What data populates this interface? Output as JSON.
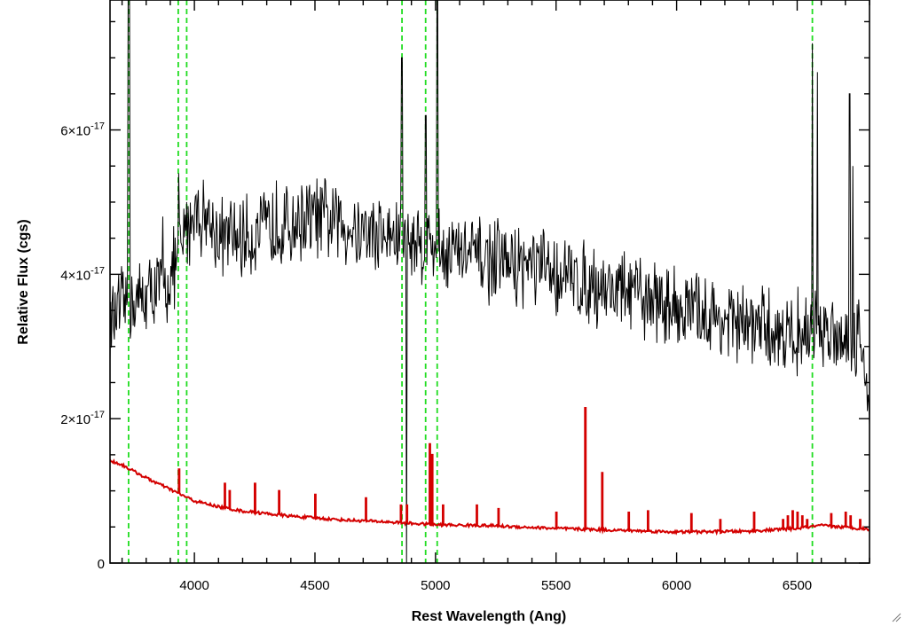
{
  "chart_data": {
    "type": "line",
    "title": "",
    "xlabel": "Rest Wavelength (Ang)",
    "ylabel": "Relative Flux (cgs)",
    "xlim": [
      3650,
      6800
    ],
    "ylim": [
      0,
      7.8e-17
    ],
    "x_ticks": [
      4000,
      4500,
      5000,
      5500,
      6000,
      6500
    ],
    "x_tick_labels": [
      "4000",
      "4500",
      "5000",
      "5500",
      "6000",
      "6500"
    ],
    "y_ticks": [
      0,
      2e-17,
      4e-17,
      6e-17
    ],
    "y_tick_labels": [
      {
        "mantissa": "0",
        "exponent": ""
      },
      {
        "mantissa": "2×10",
        "exponent": "-17"
      },
      {
        "mantissa": "4×10",
        "exponent": "-17"
      },
      {
        "mantissa": "6×10",
        "exponent": "-17"
      }
    ],
    "grid": false,
    "series": [
      {
        "color": "#000000",
        "style": "solid",
        "continuum": [
          [
            3650,
            3.3e-17
          ],
          [
            3700,
            3.5e-17
          ],
          [
            3800,
            3.7e-17
          ],
          [
            3900,
            3.9e-17
          ],
          [
            4000,
            4.9e-17
          ],
          [
            4050,
            4.8e-17
          ],
          [
            4100,
            4.5e-17
          ],
          [
            4200,
            4.5e-17
          ],
          [
            4300,
            4.6e-17
          ],
          [
            4400,
            4.7e-17
          ],
          [
            4500,
            4.8e-17
          ],
          [
            4700,
            4.6e-17
          ],
          [
            4850,
            4.5e-17
          ],
          [
            5000,
            4.4e-17
          ],
          [
            5200,
            4.2e-17
          ],
          [
            5400,
            4.1e-17
          ],
          [
            5600,
            3.9e-17
          ],
          [
            5800,
            3.75e-17
          ],
          [
            6000,
            3.55e-17
          ],
          [
            6200,
            3.35e-17
          ],
          [
            6400,
            3.2e-17
          ],
          [
            6600,
            3.2e-17
          ],
          [
            6750,
            3.2e-17
          ],
          [
            6800,
            2.4e-17
          ]
        ],
        "noise_amplitude": 5.5e-18,
        "features": [
          [
            3727,
            7.8e-17
          ],
          [
            3730,
            7.8e-17
          ],
          [
            3869,
            4.8e-17
          ],
          [
            3935,
            5.4e-17
          ],
          [
            3968,
            5e-17
          ],
          [
            4340,
            5.3e-17
          ],
          [
            4861,
            7e-17
          ],
          [
            4880,
            0.0
          ],
          [
            4959,
            6.2e-17
          ],
          [
            5007,
            7.8e-17
          ],
          [
            6563,
            7.2e-17
          ],
          [
            6584,
            6.8e-17
          ],
          [
            6717,
            6.5e-17
          ],
          [
            6731,
            5.5e-17
          ]
        ]
      },
      {
        "color": "#d40000",
        "style": "solid",
        "continuum": [
          [
            3650,
            1.42e-17
          ],
          [
            3700,
            1.36e-17
          ],
          [
            3800,
            1.18e-17
          ],
          [
            3900,
            1.02e-17
          ],
          [
            4000,
            8.6e-18
          ],
          [
            4100,
            7.8e-18
          ],
          [
            4200,
            7.2e-18
          ],
          [
            4400,
            6.5e-18
          ],
          [
            4600,
            6e-18
          ],
          [
            4800,
            5.7e-18
          ],
          [
            5000,
            5.3e-18
          ],
          [
            5200,
            5.2e-18
          ],
          [
            5500,
            4.8e-18
          ],
          [
            5800,
            4.5e-18
          ],
          [
            6000,
            4.3e-18
          ],
          [
            6300,
            4.4e-18
          ],
          [
            6500,
            4.8e-18
          ],
          [
            6600,
            5.2e-18
          ],
          [
            6800,
            4.7e-18
          ]
        ],
        "spikes": [
          [
            3935,
            1.3e-17
          ],
          [
            4125,
            1.1e-17
          ],
          [
            4145,
            1e-17
          ],
          [
            4250,
            1.1e-17
          ],
          [
            4350,
            1e-17
          ],
          [
            4500,
            9.5e-18
          ],
          [
            4710,
            9e-18
          ],
          [
            4855,
            8e-18
          ],
          [
            4880,
            8e-18
          ],
          [
            4975,
            1.65e-17
          ],
          [
            4985,
            1.5e-17
          ],
          [
            5030,
            8e-18
          ],
          [
            5170,
            8e-18
          ],
          [
            5260,
            7.5e-18
          ],
          [
            5500,
            7e-18
          ],
          [
            5620,
            2.15e-17
          ],
          [
            5690,
            1.25e-17
          ],
          [
            5800,
            7e-18
          ],
          [
            5880,
            7.2e-18
          ],
          [
            6060,
            6.8e-18
          ],
          [
            6180,
            6e-18
          ],
          [
            6320,
            7e-18
          ],
          [
            6440,
            6e-18
          ],
          [
            6460,
            6.5e-18
          ],
          [
            6480,
            7.2e-18
          ],
          [
            6500,
            7e-18
          ],
          [
            6520,
            6.5e-18
          ],
          [
            6540,
            6e-18
          ],
          [
            6640,
            6.8e-18
          ],
          [
            6700,
            7e-18
          ],
          [
            6720,
            6.5e-18
          ],
          [
            6760,
            6e-18
          ]
        ]
      },
      {
        "color": "#22dd22",
        "style": "dashed",
        "vlines": [
          3727,
          3933,
          3968,
          4861,
          4959,
          5007,
          6563
        ]
      }
    ]
  },
  "colors": {
    "axis": "#000000",
    "spectrum": "#000000",
    "error": "#d40000",
    "lines": "#22dd22",
    "background": "#ffffff"
  }
}
